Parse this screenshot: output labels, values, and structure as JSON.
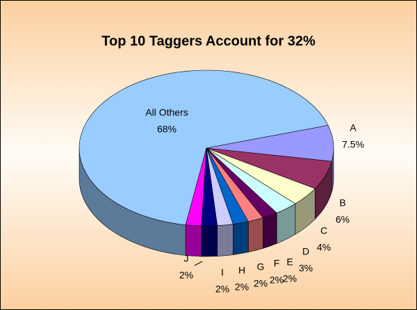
{
  "chart_data": {
    "type": "pie",
    "title": "Top 10 Taggers Account for 32%",
    "categories": [
      "All Others",
      "A",
      "B",
      "C",
      "D",
      "E",
      "F",
      "G",
      "H",
      "I",
      "J"
    ],
    "values": [
      68,
      7.5,
      6,
      4,
      3,
      2,
      2,
      2,
      2,
      2,
      2
    ],
    "value_labels": [
      "68%",
      "7.5%",
      "6%",
      "4%",
      "3%",
      "2%",
      "2%",
      "2%",
      "2%",
      "2%",
      "2%"
    ],
    "colors": [
      "#99ccff",
      "#9999ff",
      "#993366",
      "#ffffcc",
      "#ccffff",
      "#660066",
      "#ff8080",
      "#0066cc",
      "#ccccff",
      "#000080",
      "#ff00ff"
    ]
  }
}
